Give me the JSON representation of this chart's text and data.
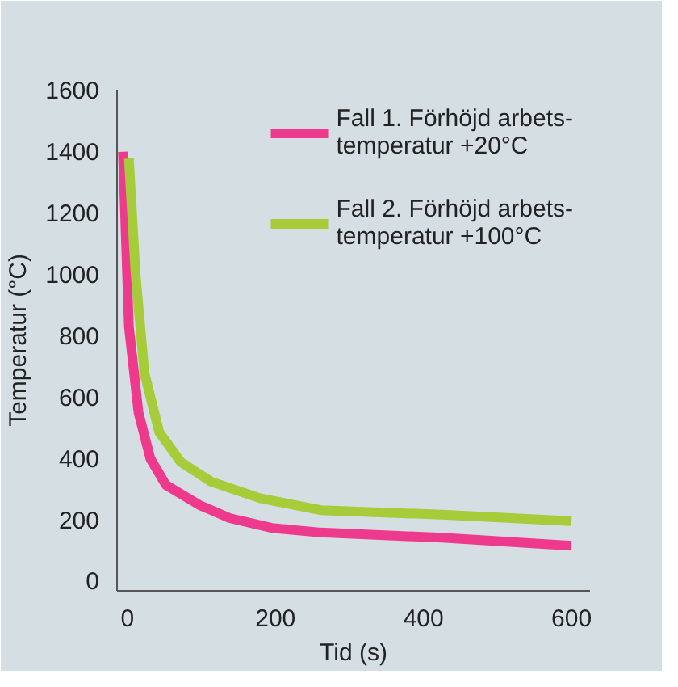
{
  "chart_data": {
    "type": "line",
    "xlabel": "Tid (s)",
    "ylabel": "Temperatur (°C)",
    "xlim": [
      -14,
      625
    ],
    "ylim": [
      -33,
      1600
    ],
    "xticks": [
      0,
      200,
      400,
      600
    ],
    "yticks": [
      0,
      200,
      400,
      600,
      800,
      1000,
      1200,
      1400,
      1600
    ],
    "grid": false,
    "legend": "top right",
    "line_style": "solid",
    "marker": "none",
    "series": [
      {
        "name": "Fall 1. Förhöjd arbets-\ntemperatur +20°C",
        "color": "#ee3a8c",
        "x": [
          -6,
          2,
          15,
          31,
          52,
          97,
          138,
          195,
          261,
          425,
          600
        ],
        "values": [
          1398,
          828,
          548,
          398,
          312,
          247,
          204,
          172,
          157,
          140,
          114
        ]
      },
      {
        "name": "Fall 2. Förhöjd arbets-\ntemperatur +100°C",
        "color": "#a6cc3a",
        "x": [
          2,
          11,
          23,
          43,
          72,
          113,
          179,
          261,
          425,
          600
        ],
        "values": [
          1376,
          1000,
          677,
          484,
          387,
          323,
          269,
          230,
          215,
          194
        ]
      }
    ]
  }
}
